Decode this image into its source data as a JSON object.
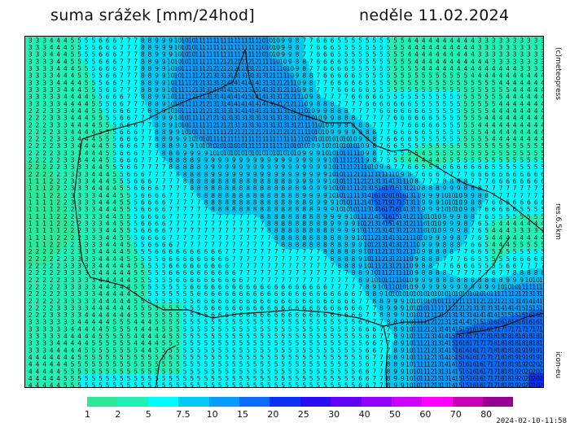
{
  "header": {
    "title": "suma srážek [mm/24hod]",
    "date": "neděle 11.02.2024"
  },
  "side_labels": {
    "copyright": "(c)meteopress",
    "resolution": "res.6.5km",
    "model": "icon-eu"
  },
  "timestamp": "2024-02-10-11:58",
  "legend": {
    "labels": [
      "1",
      "2",
      "5",
      "7.5",
      "10",
      "15",
      "20",
      "25",
      "30",
      "40",
      "50",
      "60",
      "70",
      "80"
    ],
    "thresholds": [
      1,
      2,
      5,
      7.5,
      10,
      15,
      20,
      25,
      30,
      40,
      50,
      60,
      70,
      80
    ],
    "colors": [
      "#2ee89a",
      "#22f0b4",
      "#00fcfc",
      "#00c8f2",
      "#0a9cfa",
      "#0a6cf8",
      "#0a30f8",
      "#2a0cf6",
      "#6000f6",
      "#9400fa",
      "#cc00f8",
      "#ff00ff",
      "#c800b4",
      "#960090"
    ]
  },
  "precip_field_mm": {
    "grid_columns": 74,
    "grid_rows": 50,
    "coarse": [
      [
        3,
        5,
        6,
        8,
        10,
        11,
        11,
        9,
        6,
        5,
        5,
        4,
        4,
        3,
        3
      ],
      [
        3,
        4,
        6,
        8,
        11,
        14,
        15,
        12,
        7,
        6,
        5,
        5,
        5,
        5,
        4
      ],
      [
        2,
        4,
        5,
        7,
        10,
        12,
        13,
        13,
        10,
        8,
        7,
        6,
        5,
        4,
        4
      ],
      [
        2,
        3,
        5,
        7,
        8,
        9,
        9,
        9,
        9,
        12,
        5,
        4,
        5,
        5,
        5
      ],
      [
        1,
        3,
        4,
        6,
        7,
        8,
        8,
        8,
        9,
        11,
        20,
        9,
        10,
        7,
        7
      ],
      [
        1,
        2,
        4,
        6,
        7,
        7,
        7,
        8,
        8,
        9,
        14,
        10,
        9,
        4,
        3
      ],
      [
        2,
        3,
        4,
        5,
        6,
        6,
        7,
        7,
        7,
        8,
        13,
        8,
        6,
        5,
        7
      ],
      [
        2,
        3,
        4,
        5,
        5,
        6,
        6,
        6,
        6,
        6,
        9,
        10,
        11,
        12,
        14
      ],
      [
        3,
        4,
        5,
        4,
        5,
        5,
        5,
        5,
        5,
        5,
        7,
        12,
        16,
        18,
        18
      ],
      [
        4,
        5,
        5,
        5,
        5,
        5,
        5,
        5,
        5,
        5,
        8,
        11,
        15,
        17,
        20
      ]
    ]
  }
}
